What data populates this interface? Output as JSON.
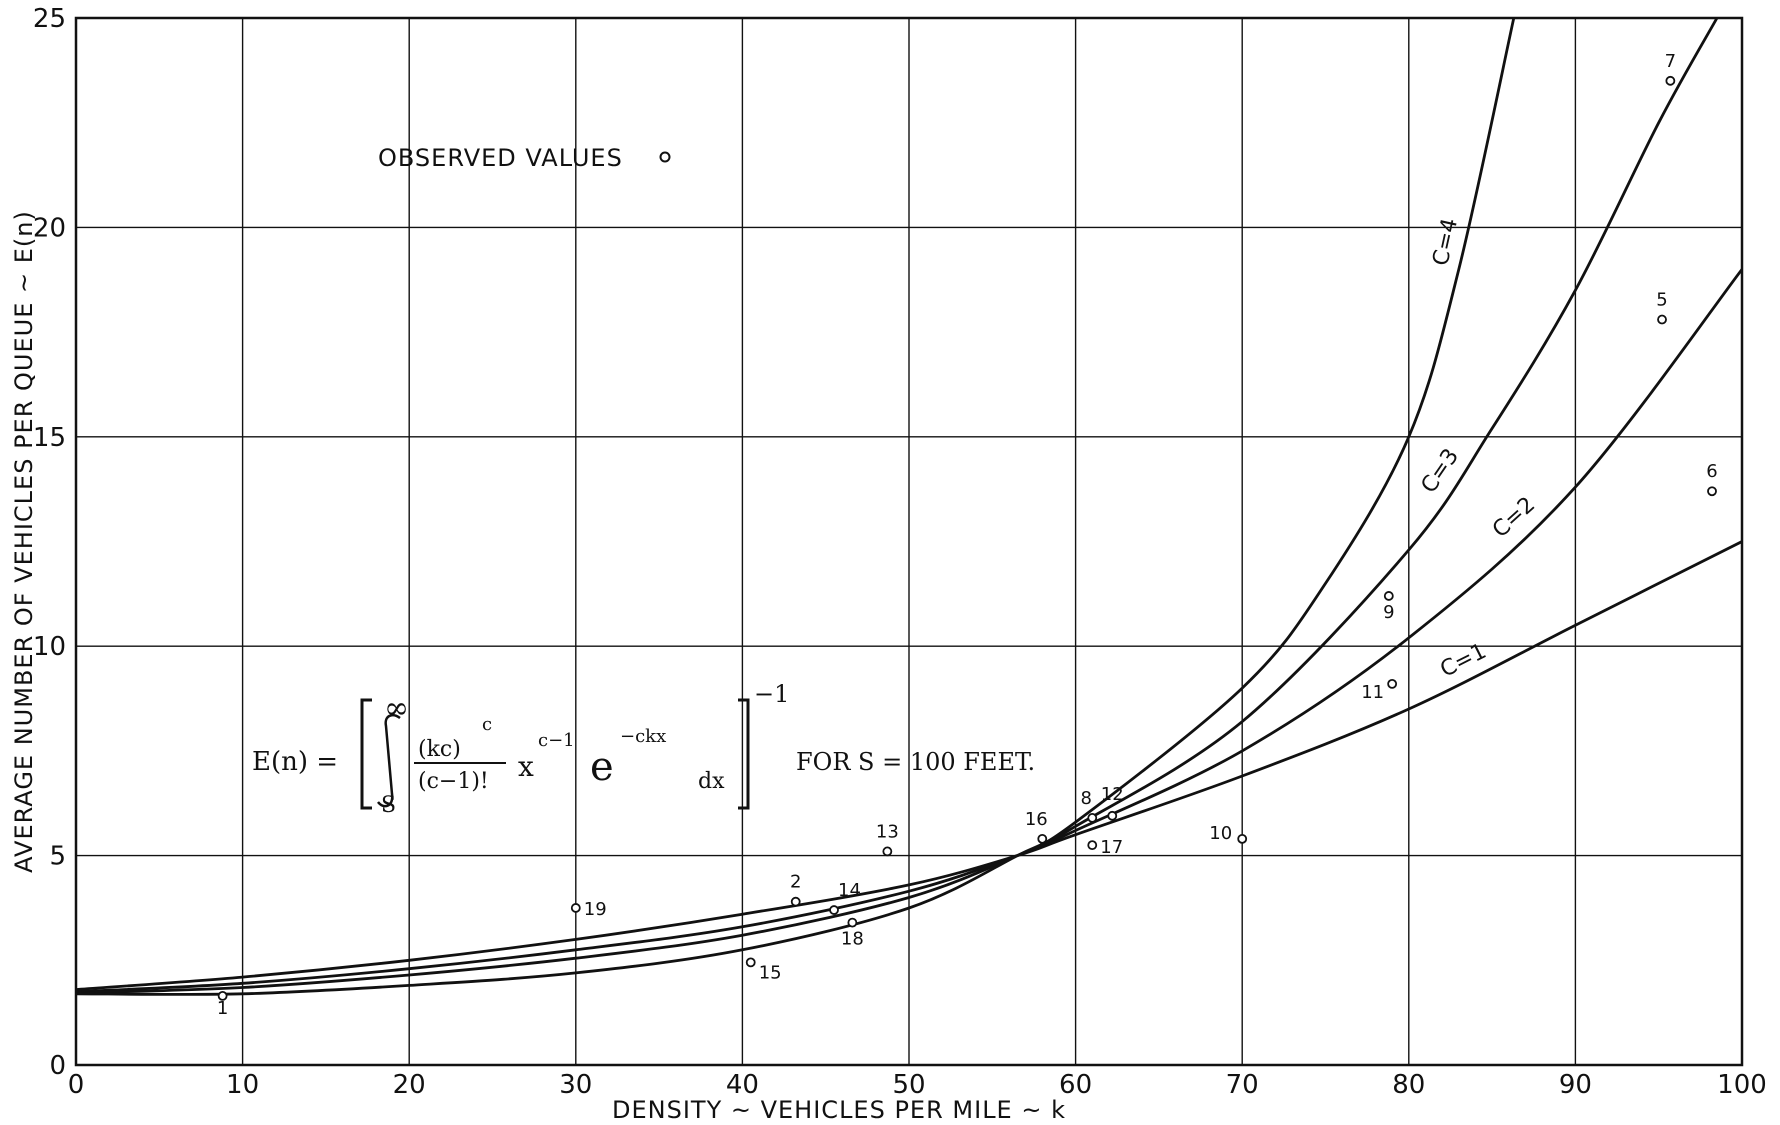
{
  "chart_data": {
    "type": "line",
    "xlabel": "DENSITY ~ VEHICLES PER MILE ~ k",
    "ylabel": "AVERAGE NUMBER OF VEHICLES PER QUEUE ~ E(n)",
    "xlim": [
      0,
      100
    ],
    "ylim": [
      0,
      25
    ],
    "x_ticks": [
      "0",
      "10",
      "20",
      "30",
      "40",
      "50",
      "60",
      "70",
      "80",
      "90",
      "100"
    ],
    "y_ticks": [
      "0",
      "5",
      "10",
      "15",
      "20",
      "25"
    ],
    "grid": true,
    "legend": {
      "text": "OBSERVED VALUES",
      "placement": "top-left"
    },
    "formula": {
      "lhs": "E(n) =",
      "integral_upper": "∞",
      "integral_lower": "S",
      "frac_num": "(kc)",
      "frac_num_exp": "c",
      "frac_den": "(c−1)!",
      "x_term": "x",
      "x_exp": "c−1",
      "e_term": "e",
      "e_exp": "−ckx",
      "dx": "dx",
      "outer_exp": "−1",
      "condition": "FOR  S = 100 FEET."
    },
    "series": [
      {
        "name": "C=1",
        "x": [
          0,
          10,
          20,
          30,
          40,
          50,
          56.5,
          60,
          70,
          80,
          90,
          100
        ],
        "y": [
          1.8,
          2.1,
          2.5,
          3.0,
          3.6,
          4.3,
          5.0,
          5.5,
          6.9,
          8.5,
          10.5,
          12.5
        ]
      },
      {
        "name": "C=2",
        "x": [
          0,
          10,
          20,
          30,
          40,
          50,
          56.5,
          60,
          70,
          80,
          90,
          100
        ],
        "y": [
          1.75,
          1.95,
          2.3,
          2.75,
          3.3,
          4.15,
          5.0,
          5.6,
          7.5,
          10.2,
          13.8,
          19.0
        ]
      },
      {
        "name": "C=3",
        "x": [
          0,
          10,
          20,
          30,
          40,
          50,
          56.5,
          60,
          70,
          80,
          85,
          90,
          95,
          98.5
        ],
        "y": [
          1.72,
          1.85,
          2.15,
          2.55,
          3.1,
          4.0,
          5.0,
          5.7,
          8.2,
          12.3,
          15.2,
          18.5,
          22.5,
          25.0
        ]
      },
      {
        "name": "C=4",
        "x": [
          0,
          10,
          20,
          30,
          40,
          50,
          56.5,
          60,
          70,
          75,
          80,
          83,
          86.3
        ],
        "y": [
          1.7,
          1.7,
          1.9,
          2.2,
          2.75,
          3.75,
          5.0,
          5.8,
          9.0,
          11.5,
          15.0,
          19.0,
          25.0
        ]
      }
    ],
    "observed": [
      {
        "label": "1",
        "x": 8.8,
        "y": 1.65
      },
      {
        "label": "2",
        "x": 43.2,
        "y": 3.9
      },
      {
        "label": "5",
        "x": 95.2,
        "y": 17.8
      },
      {
        "label": "6",
        "x": 98.2,
        "y": 13.7
      },
      {
        "label": "7",
        "x": 95.7,
        "y": 23.5
      },
      {
        "label": "8",
        "x": 61.0,
        "y": 5.9
      },
      {
        "label": "9",
        "x": 78.8,
        "y": 11.2
      },
      {
        "label": "10",
        "x": 70.0,
        "y": 5.4
      },
      {
        "label": "11",
        "x": 79.0,
        "y": 9.1
      },
      {
        "label": "12",
        "x": 62.2,
        "y": 5.95
      },
      {
        "label": "13",
        "x": 48.7,
        "y": 5.1
      },
      {
        "label": "14",
        "x": 45.5,
        "y": 3.7
      },
      {
        "label": "15",
        "x": 40.5,
        "y": 2.45
      },
      {
        "label": "16",
        "x": 58.0,
        "y": 5.4
      },
      {
        "label": "17",
        "x": 61.0,
        "y": 5.25
      },
      {
        "label": "18",
        "x": 46.6,
        "y": 3.4
      },
      {
        "label": "19",
        "x": 30.0,
        "y": 3.75
      }
    ]
  }
}
